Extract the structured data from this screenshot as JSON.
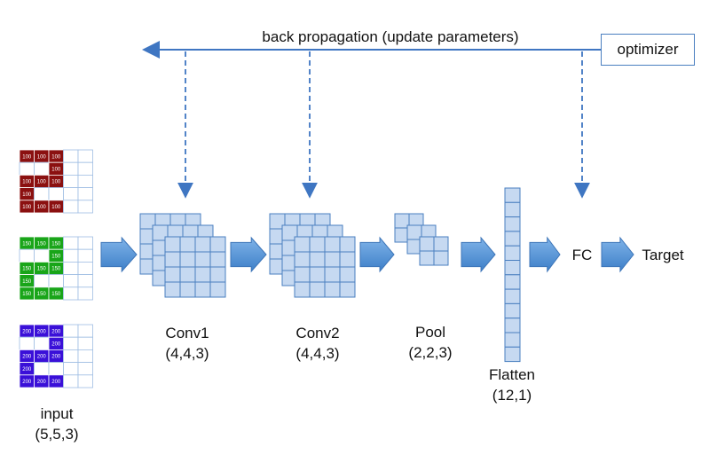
{
  "title_label": "back propagation (update parameters)",
  "optimizer_label": "optimizer",
  "input": {
    "label": "input",
    "shape": "(5,5,3)",
    "channels": [
      {
        "name": "red",
        "color": "#8b1010",
        "value": "100",
        "mask": [
          [
            1,
            1,
            1,
            0,
            0
          ],
          [
            0,
            0,
            1,
            0,
            0
          ],
          [
            1,
            1,
            1,
            0,
            0
          ],
          [
            1,
            0,
            0,
            0,
            0
          ],
          [
            1,
            1,
            1,
            0,
            0
          ]
        ]
      },
      {
        "name": "green",
        "color": "#19a519",
        "value": "150",
        "mask": [
          [
            1,
            1,
            1,
            0,
            0
          ],
          [
            0,
            0,
            1,
            0,
            0
          ],
          [
            1,
            1,
            1,
            0,
            0
          ],
          [
            1,
            0,
            0,
            0,
            0
          ],
          [
            1,
            1,
            1,
            0,
            0
          ]
        ]
      },
      {
        "name": "blue",
        "color": "#3a10d8",
        "value": "200",
        "mask": [
          [
            1,
            1,
            1,
            0,
            0
          ],
          [
            0,
            0,
            1,
            0,
            0
          ],
          [
            1,
            1,
            1,
            0,
            0
          ],
          [
            1,
            0,
            0,
            0,
            0
          ],
          [
            1,
            1,
            1,
            0,
            0
          ]
        ]
      }
    ]
  },
  "conv1": {
    "label": "Conv1",
    "shape": "(4,4,3)"
  },
  "conv2": {
    "label": "Conv2",
    "shape": "(4,4,3)"
  },
  "pool": {
    "label": "Pool",
    "shape": "(2,2,3)"
  },
  "flatten": {
    "label": "Flatten",
    "shape": "(12,1)"
  },
  "fc": {
    "label": "FC"
  },
  "target": {
    "label": "Target"
  },
  "colors": {
    "cell_fill": "#c6d9f1",
    "cell_stroke": "#4a7fc0",
    "arrow_fill": "#5b9bd5",
    "dash_line": "#3f76c2"
  }
}
